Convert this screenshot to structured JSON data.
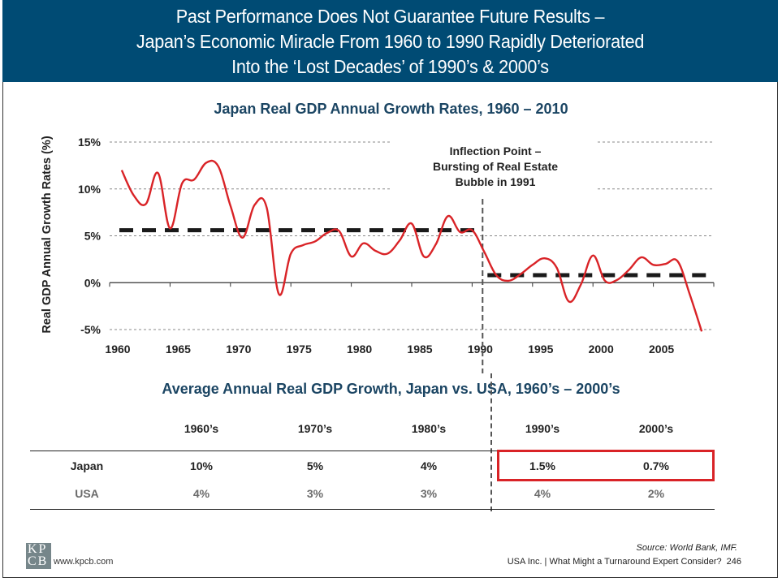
{
  "header": {
    "title_lines": [
      "Past Performance Does Not Guarantee Future Results –",
      "Japan’s Economic Miracle From 1960 to 1990 Rapidly Deteriorated",
      "Into the ‘Lost Decades’ of 1990’s & 2000’s"
    ]
  },
  "colors": {
    "header_bg": "#004b74",
    "title_text": "#1b4563",
    "series_line": "#d92327",
    "average_line": "#1a1a1a",
    "highlight_box": "#d92327"
  },
  "chart_data": [
    {
      "type": "line",
      "title": "Japan Real GDP Annual Growth Rates, 1960 – 2010",
      "xlabel": "",
      "ylabel": "Real GDP Annual Growth Rates (%)",
      "xlim": [
        1960,
        2010
      ],
      "ylim": [
        -5,
        15
      ],
      "x_ticks": [
        "1960",
        "1965",
        "1970",
        "1975",
        "1980",
        "1985",
        "1990",
        "1995",
        "2000",
        "2005"
      ],
      "y_ticks": [
        "15%",
        "10%",
        "5%",
        "0%",
        "-5%"
      ],
      "y_tick_values": [
        15,
        10,
        5,
        0,
        -5
      ],
      "grid": "horizontal dashed",
      "series": [
        {
          "name": "Japan Real GDP Growth (%)",
          "x": [
            1961,
            1962,
            1963,
            1964,
            1965,
            1966,
            1967,
            1968,
            1969,
            1970,
            1971,
            1972,
            1973,
            1974,
            1975,
            1976,
            1977,
            1978,
            1979,
            1980,
            1981,
            1982,
            1983,
            1984,
            1985,
            1986,
            1987,
            1988,
            1989,
            1990,
            1991,
            1992,
            1993,
            1994,
            1995,
            1996,
            1997,
            1998,
            1999,
            2000,
            2001,
            2002,
            2003,
            2004,
            2005,
            2006,
            2007,
            2008,
            2009
          ],
          "values": [
            12.0,
            9.3,
            8.4,
            11.7,
            5.8,
            10.6,
            11.0,
            12.8,
            12.4,
            8.2,
            4.8,
            8.3,
            8.0,
            -1.2,
            3.1,
            4.0,
            4.4,
            5.3,
            5.5,
            2.8,
            4.2,
            3.4,
            3.1,
            4.5,
            6.3,
            2.8,
            4.1,
            7.1,
            5.4,
            5.6,
            3.3,
            0.8,
            0.2,
            0.9,
            1.9,
            2.6,
            1.6,
            -2.0,
            -0.2,
            2.9,
            0.2,
            0.3,
            1.4,
            2.7,
            1.9,
            2.0,
            2.3,
            -1.2,
            -5.2
          ]
        }
      ],
      "reference_lines": [
        {
          "name": "Average 1960–1991",
          "x_range": [
            1960,
            1991
          ],
          "value": 5.6,
          "style": "thick dashed black"
        },
        {
          "name": "Average 1991–2009",
          "x_range": [
            1991,
            2009
          ],
          "value": 0.8,
          "style": "thick dashed black"
        }
      ],
      "vertical_marker": {
        "x": 1991,
        "style": "dashed gray"
      },
      "annotation": {
        "lines": [
          "Inflection Point –",
          "Bursting of Real Estate",
          "Bubble in 1991"
        ]
      }
    },
    {
      "type": "table",
      "title": "Average Annual Real GDP Growth, Japan vs. USA, 1960’s – 2000’s",
      "columns": [
        "1960’s",
        "1970’s",
        "1980’s",
        "1990’s",
        "2000’s"
      ],
      "rows": [
        {
          "label": "Japan",
          "values": [
            "10%",
            "5%",
            "4%",
            "1.5%",
            "0.7%"
          ]
        },
        {
          "label": "USA",
          "values": [
            "4%",
            "3%",
            "3%",
            "4%",
            "2%"
          ]
        }
      ],
      "highlighted": {
        "row": "Japan",
        "columns": [
          "1990’s",
          "2000’s"
        ]
      }
    }
  ],
  "footer": {
    "logo_top": "KP",
    "logo_bottom": "CB",
    "website": "www.kpcb.com",
    "source": "Source: World Bank, IMF.",
    "deck_title": "USA Inc. | What Might a Turnaround Expert Consider?",
    "page_number": "246"
  }
}
